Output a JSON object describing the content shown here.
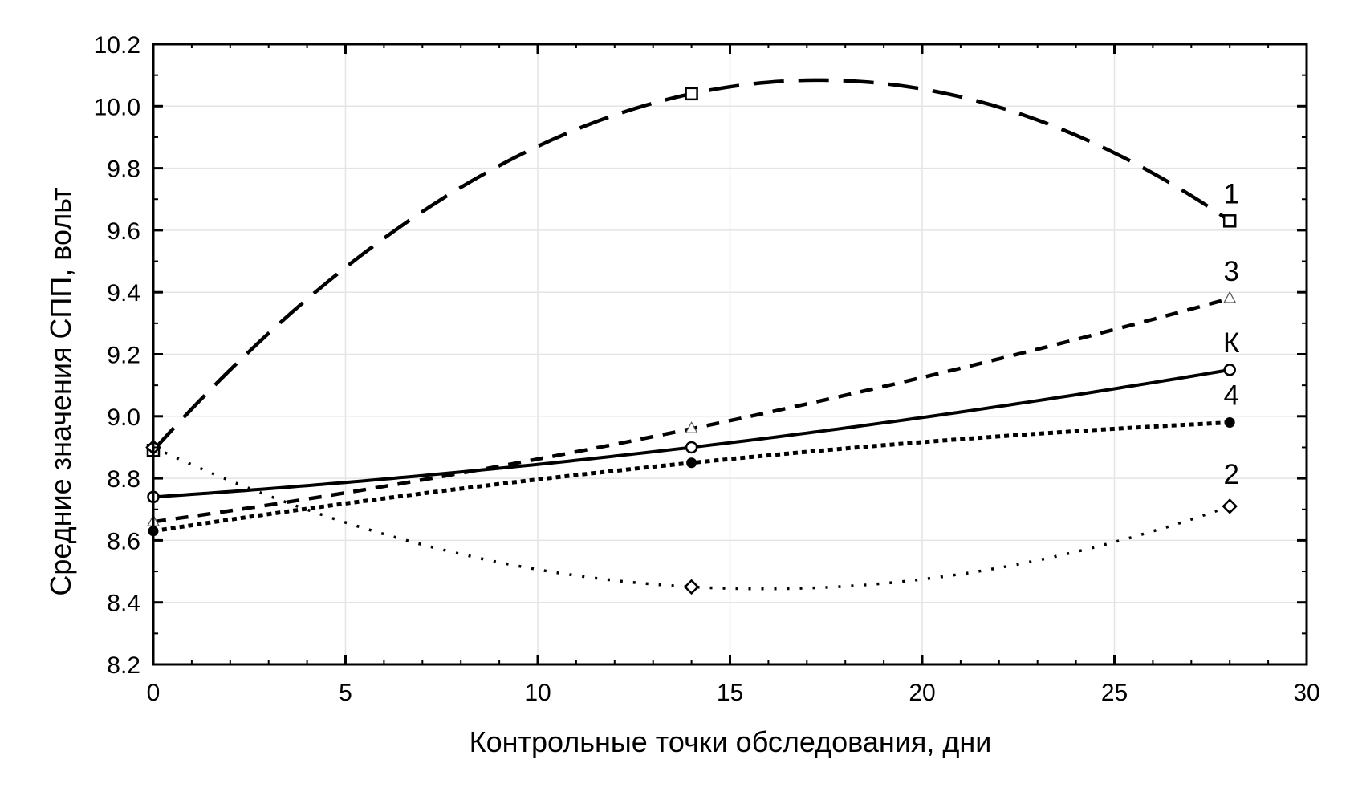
{
  "chart_data": {
    "type": "line",
    "title": "",
    "xlabel": "Контрольные точки обследования, дни",
    "ylabel": "Средние значения СПП, вольт",
    "xlim": [
      0,
      30
    ],
    "ylim": [
      8.2,
      10.2
    ],
    "x_ticks": [
      "0",
      "5",
      "10",
      "15",
      "20",
      "25",
      "30"
    ],
    "y_ticks": [
      "8.2",
      "8.4",
      "8.6",
      "8.8",
      "9.0",
      "9.2",
      "9.4",
      "9.6",
      "9.8",
      "10.0",
      "10.2"
    ],
    "grid": true,
    "legend_position": "inline labels at right end of each curve",
    "x": [
      0,
      14,
      28
    ],
    "series": [
      {
        "name": "1",
        "label": "1",
        "marker": "square-open",
        "line_style": "long-dash",
        "values": [
          8.89,
          10.04,
          9.63
        ]
      },
      {
        "name": "2",
        "label": "2",
        "marker": "diamond-open",
        "line_style": "sparse-dotted",
        "values": [
          8.9,
          8.45,
          8.71
        ]
      },
      {
        "name": "3",
        "label": "3",
        "marker": "triangle-open",
        "line_style": "dashed",
        "values": [
          8.66,
          8.96,
          9.38
        ]
      },
      {
        "name": "К",
        "label": "К",
        "marker": "circle-open",
        "line_style": "solid",
        "values": [
          8.74,
          8.9,
          9.15
        ]
      },
      {
        "name": "4",
        "label": "4",
        "marker": "circle-filled",
        "line_style": "dense-dotted",
        "values": [
          8.63,
          8.85,
          8.98
        ]
      }
    ]
  },
  "colors": {
    "line": "#000000",
    "grid": "#e4e4e4",
    "triangle_marker": "#555555",
    "background": "#ffffff"
  }
}
